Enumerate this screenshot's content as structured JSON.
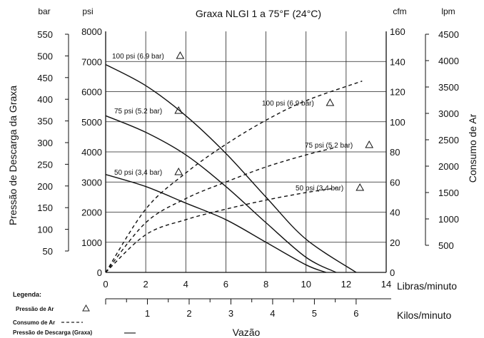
{
  "chart_data": {
    "type": "line",
    "title": "Graxa NLGI 1 a 75°F (24°C)",
    "x_axis": {
      "primary_label": "Libras/minuto",
      "primary_range": [
        0,
        14
      ],
      "primary_ticks": [
        "0",
        "2",
        "4",
        "6",
        "8",
        "10",
        "12",
        "14"
      ],
      "secondary_label": "Kilos/minuto",
      "secondary_ticks": [
        "1",
        "2",
        "3",
        "4",
        "5",
        "6"
      ],
      "title": "Vazão"
    },
    "y_left": {
      "title": "Pressão de Descarga da Graxa",
      "psi_unit": "psi",
      "psi_range": [
        0,
        8000
      ],
      "psi_ticks": [
        "0",
        "1000",
        "2000",
        "3000",
        "4000",
        "5000",
        "6000",
        "7000",
        "8000"
      ],
      "bar_unit": "bar",
      "bar_ticks": [
        "50",
        "100",
        "150",
        "200",
        "250",
        "300",
        "350",
        "400",
        "450",
        "500",
        "550"
      ]
    },
    "y_right": {
      "title": "Consumo de Ar",
      "cfm_unit": "cfm",
      "cfm_range": [
        0,
        160
      ],
      "cfm_ticks": [
        "0",
        "20",
        "40",
        "60",
        "80",
        "100",
        "120",
        "140",
        "160"
      ],
      "lpm_unit": "lpm",
      "lpm_ticks": [
        "500",
        "1000",
        "1500",
        "2000",
        "2500",
        "3000",
        "3500",
        "4000",
        "4500"
      ]
    },
    "grid": true,
    "legend": {
      "title": "Legenda:",
      "items": [
        {
          "label": "Pressão de Ar",
          "style": "triangle"
        },
        {
          "label": "Consumo de Ar",
          "style": "dashed"
        },
        {
          "label": "Pressão de Descarga (Graxa)",
          "style": "solid"
        }
      ],
      "placement": "bottom-left"
    },
    "series": [
      {
        "name": "100 psi (6.9 bar)",
        "kind": "discharge",
        "points": [
          [
            0,
            6900
          ],
          [
            2,
            6200
          ],
          [
            4,
            5200
          ],
          [
            6,
            3950
          ],
          [
            8,
            2500
          ],
          [
            10,
            1100
          ],
          [
            12.5,
            0
          ]
        ]
      },
      {
        "name": "75 psi (5.2 bar)",
        "kind": "discharge",
        "points": [
          [
            0,
            5200
          ],
          [
            2,
            4650
          ],
          [
            4,
            3900
          ],
          [
            6,
            2850
          ],
          [
            8,
            1650
          ],
          [
            10,
            500
          ],
          [
            11.5,
            0
          ]
        ]
      },
      {
        "name": "50 psi (3,4 bar)",
        "kind": "discharge",
        "points": [
          [
            0,
            3250
          ],
          [
            2,
            2850
          ],
          [
            4,
            2300
          ],
          [
            6,
            1750
          ],
          [
            8,
            1000
          ],
          [
            10,
            250
          ],
          [
            11,
            0
          ]
        ]
      },
      {
        "name": "100 psi (6.9 bar)",
        "kind": "air",
        "points": [
          [
            0,
            0
          ],
          [
            2,
            42
          ],
          [
            4,
            66
          ],
          [
            6,
            85
          ],
          [
            8,
            101
          ],
          [
            10,
            114
          ],
          [
            12.8,
            127
          ]
        ]
      },
      {
        "name": "75 psi (5.2 bar)",
        "kind": "air",
        "points": [
          [
            0,
            0
          ],
          [
            2,
            33
          ],
          [
            4,
            49
          ],
          [
            6,
            60
          ],
          [
            8,
            70
          ],
          [
            10,
            78
          ],
          [
            11.5,
            83
          ]
        ]
      },
      {
        "name": "50 psi (3,4 bar)",
        "kind": "air",
        "points": [
          [
            0,
            0
          ],
          [
            2,
            25
          ],
          [
            4,
            35
          ],
          [
            6,
            42
          ],
          [
            8,
            48
          ],
          [
            10,
            53
          ],
          [
            11.5,
            56
          ]
        ]
      }
    ],
    "annotations": [
      {
        "text": "100 psi (6.9 bar)",
        "series_index": 0
      },
      {
        "text": "75 psi (5.2 bar)",
        "series_index": 1
      },
      {
        "text": "50 psi (3,4 bar)",
        "series_index": 2
      },
      {
        "text": "100 psi (6.9 bar)",
        "series_index": 3
      },
      {
        "text": "75 psi (5.2 bar)",
        "series_index": 4
      },
      {
        "text": "50 psi (3,4 bar)",
        "series_index": 5
      }
    ]
  }
}
